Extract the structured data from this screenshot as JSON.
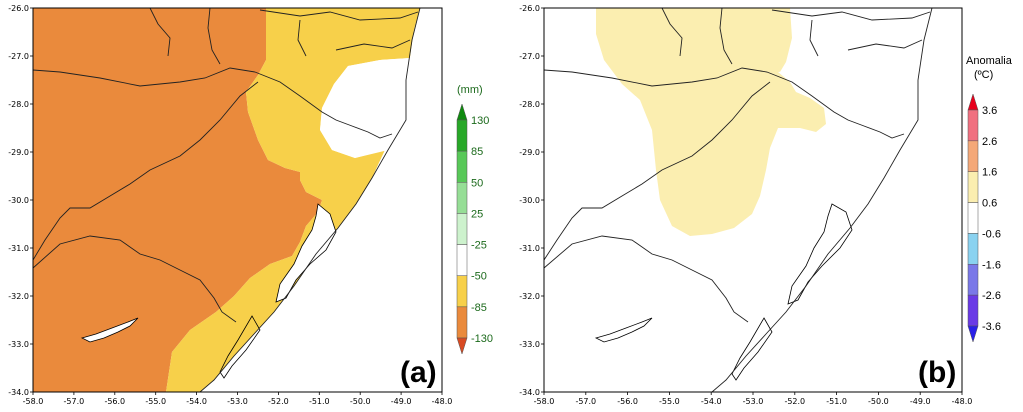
{
  "panels": [
    {
      "id": "a",
      "label": "(a)",
      "colorbar_title": "(mm)",
      "colorbar_levels": [
        "130",
        "85",
        "50",
        "25",
        "-25",
        "-50",
        "-85",
        "-130"
      ],
      "colorbar_colors": [
        "#0f8a0f",
        "#28a828",
        "#58c858",
        "#96de96",
        "#cdf2cd",
        "#ffffff",
        "#f7d04a",
        "#ea8a3c",
        "#d84a22"
      ],
      "x_ticks": [
        "-58.0",
        "-57.0",
        "-56.0",
        "-55.0",
        "-54.0",
        "-53.0",
        "-52.0",
        "-51.0",
        "-50.0",
        "-49.0",
        "-48.0"
      ],
      "y_ticks": [
        "-26.0",
        "-27.0",
        "-28.0",
        "-29.0",
        "-30.0",
        "-31.0",
        "-32.0",
        "-33.0",
        "-34.0"
      ]
    },
    {
      "id": "b",
      "label": "(b)",
      "colorbar_title_line1": "Anomalia",
      "colorbar_title_line2": "(ºC)",
      "colorbar_levels": [
        "3.6",
        "2.6",
        "1.6",
        "0.6",
        "-0.6",
        "-1.6",
        "-2.6",
        "-3.6"
      ],
      "colorbar_colors": [
        "#e8001c",
        "#f07080",
        "#f4a878",
        "#fbeeb0",
        "#ffffff",
        "#8ad2f0",
        "#7a78e8",
        "#6a3ae6",
        "#2a20e8"
      ],
      "x_ticks": [
        "-58.0",
        "-57.0",
        "-56.0",
        "-55.0",
        "-54.0",
        "-53.0",
        "-52.0",
        "-51.0",
        "-50.0",
        "-49.0",
        "-48.0"
      ],
      "y_ticks": [
        "-26.0",
        "-27.0",
        "-28.0",
        "-29.0",
        "-30.0",
        "-31.0",
        "-32.0",
        "-33.0",
        "-34.0"
      ]
    }
  ],
  "colors": {
    "orange": "#ea8a3c",
    "yellow": "#f7d04a",
    "light_yellow": "#fbeeb0",
    "border": "#000000"
  }
}
